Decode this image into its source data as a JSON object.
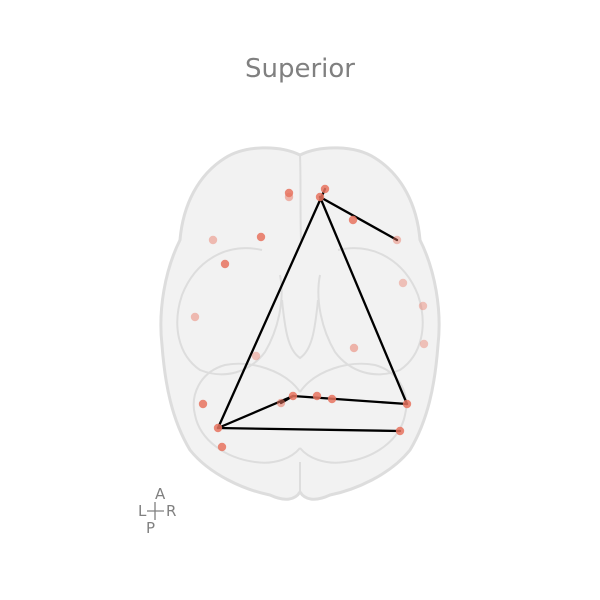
{
  "view": {
    "title": "Superior"
  },
  "orientation": {
    "anterior": "A",
    "posterior": "P",
    "left": "L",
    "right": "R"
  },
  "colors": {
    "brain_fill": "#f2f2f2",
    "brain_edge": "#dddddd",
    "node": "#e8735f",
    "edge": "#000000",
    "text": "#808080"
  },
  "nodes": [
    {
      "id": "n1",
      "opacity": 0.85
    },
    {
      "id": "n2",
      "opacity": 0.5
    },
    {
      "id": "n3",
      "opacity": 0.85
    },
    {
      "id": "n4",
      "opacity": 0.85
    },
    {
      "id": "n5",
      "opacity": 0.85
    },
    {
      "id": "n6",
      "opacity": 0.45
    },
    {
      "id": "n7",
      "opacity": 0.85
    },
    {
      "id": "n8",
      "opacity": 0.45
    },
    {
      "id": "n9",
      "opacity": 0.85
    },
    {
      "id": "n10",
      "opacity": 0.4
    },
    {
      "id": "n11",
      "opacity": 0.4
    },
    {
      "id": "n12",
      "opacity": 0.4
    },
    {
      "id": "n13",
      "opacity": 0.45
    },
    {
      "id": "n14",
      "opacity": 0.5
    },
    {
      "id": "n15",
      "opacity": 0.4
    },
    {
      "id": "n16",
      "opacity": 0.55
    },
    {
      "id": "n17",
      "opacity": 0.85
    },
    {
      "id": "n18",
      "opacity": 0.85
    },
    {
      "id": "n19",
      "opacity": 0.85
    },
    {
      "id": "n20",
      "opacity": 0.85
    },
    {
      "id": "n21",
      "opacity": 0.85
    },
    {
      "id": "n22",
      "opacity": 0.85
    },
    {
      "id": "n23",
      "opacity": 0.85
    },
    {
      "id": "n24",
      "opacity": 0.85
    }
  ],
  "edges": [
    {
      "from": "n3",
      "to": "n20"
    },
    {
      "from": "n3",
      "to": "n8"
    },
    {
      "from": "n4",
      "to": "n22"
    },
    {
      "from": "n22",
      "to": "n23"
    },
    {
      "from": "n22",
      "to": "n19"
    },
    {
      "from": "n19",
      "to": "n16"
    },
    {
      "from": "n19",
      "to": "n20"
    }
  ]
}
